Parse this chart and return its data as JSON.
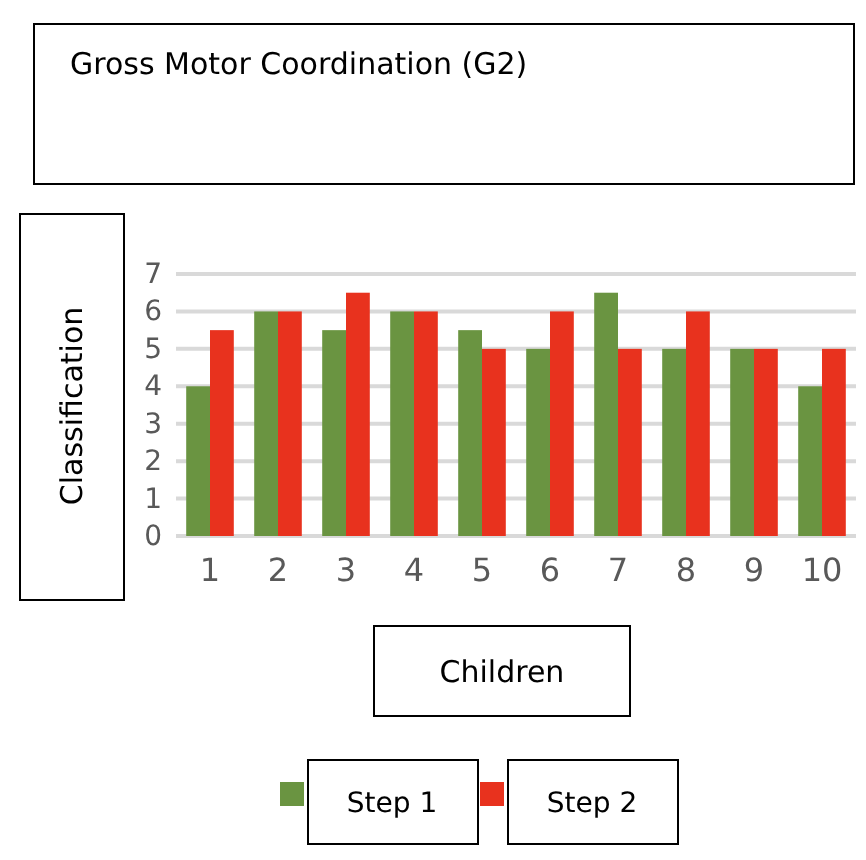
{
  "chart_data": {
    "type": "bar",
    "title": "Gross Motor Coordination (G2)",
    "xlabel": "Children",
    "ylabel": "Classification",
    "categories": [
      "1",
      "2",
      "3",
      "4",
      "5",
      "6",
      "7",
      "8",
      "9",
      "10"
    ],
    "series": [
      {
        "name": "Step 1",
        "color": "#6a9441",
        "values": [
          4,
          6,
          5.5,
          6,
          5.5,
          5,
          6.5,
          5,
          5,
          4
        ]
      },
      {
        "name": "Step 2",
        "color": "#e8321e",
        "values": [
          5.5,
          6,
          6.5,
          6,
          5,
          6,
          5,
          6,
          5,
          5
        ]
      }
    ],
    "ylim": [
      0,
      7
    ],
    "yticks": [
      0,
      1,
      2,
      3,
      4,
      5,
      6,
      7
    ],
    "grid": "y",
    "legend": "bottom"
  }
}
